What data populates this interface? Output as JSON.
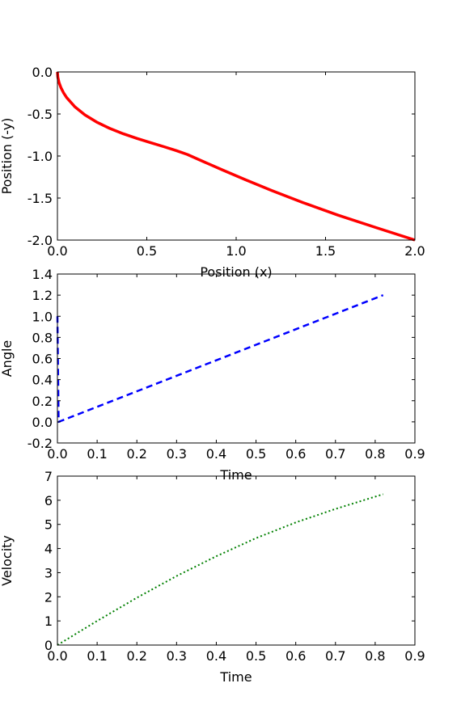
{
  "chart_data": [
    {
      "type": "line",
      "xlabel": "Position (x)",
      "ylabel": "Position (-y)",
      "xlim": [
        0,
        2
      ],
      "ylim": [
        -2,
        0
      ],
      "xticks": [
        "0.0",
        "0.5",
        "1.0",
        "1.5",
        "2.0"
      ],
      "yticks": [
        "0.0",
        "-0.5",
        "-1.0",
        "-1.5",
        "-2.0"
      ],
      "grid": false,
      "series": [
        {
          "color": "#ff0000",
          "style": "solid",
          "x": [
            0.0,
            0.0023,
            0.0089,
            0.0196,
            0.0339,
            0.0516,
            0.0969,
            0.1537,
            0.2195,
            0.2918,
            0.3681,
            0.4458,
            0.5225,
            0.5962,
            0.6649,
            0.7272,
            0.8175,
            0.9236,
            1.0495,
            1.1995,
            1.3736,
            1.5702,
            1.7854,
            2.0
          ],
          "y": [
            0.0,
            -0.0628,
            -0.1253,
            -0.1867,
            -0.2465,
            -0.3045,
            -0.4132,
            -0.5107,
            -0.5963,
            -0.6706,
            -0.735,
            -0.7914,
            -0.8421,
            -0.8894,
            -0.9355,
            -0.9822,
            -1.067,
            -1.1655,
            -1.2803,
            -1.4106,
            -1.5539,
            -1.7038,
            -1.8533,
            -2.0
          ]
        }
      ]
    },
    {
      "type": "line",
      "xlabel": "Time",
      "ylabel": "Angle",
      "xlim": [
        0,
        0.9
      ],
      "ylim": [
        -0.2,
        1.4
      ],
      "xticks": [
        "0.0",
        "0.1",
        "0.2",
        "0.3",
        "0.4",
        "0.5",
        "0.6",
        "0.7",
        "0.8",
        "0.9"
      ],
      "yticks": [
        "1.4",
        "1.2",
        "1.0",
        "0.8",
        "0.6",
        "0.4",
        "0.2",
        "0.0",
        "-0.2"
      ],
      "grid": false,
      "series": [
        {
          "color": "#0000ff",
          "style": "dashed",
          "x": [
            0.0,
            0.003,
            0.82
          ],
          "y": [
            1.0,
            0.0,
            1.2
          ]
        }
      ]
    },
    {
      "type": "line",
      "xlabel": "Time",
      "ylabel": "Velocity",
      "xlim": [
        0,
        0.9
      ],
      "ylim": [
        0,
        7
      ],
      "xticks": [
        "0.0",
        "0.1",
        "0.2",
        "0.3",
        "0.4",
        "0.5",
        "0.6",
        "0.7",
        "0.8",
        "0.9"
      ],
      "yticks": [
        "7",
        "6",
        "5",
        "4",
        "3",
        "2",
        "1",
        "0"
      ],
      "grid": false,
      "series": [
        {
          "color": "#008000",
          "style": "dotted",
          "x": [
            0.0,
            0.05,
            0.1,
            0.2,
            0.3,
            0.4,
            0.5,
            0.6,
            0.7,
            0.82
          ],
          "y": [
            0.0,
            0.5,
            1.0,
            1.96,
            2.86,
            3.68,
            4.43,
            5.08,
            5.64,
            6.25
          ]
        }
      ]
    }
  ]
}
